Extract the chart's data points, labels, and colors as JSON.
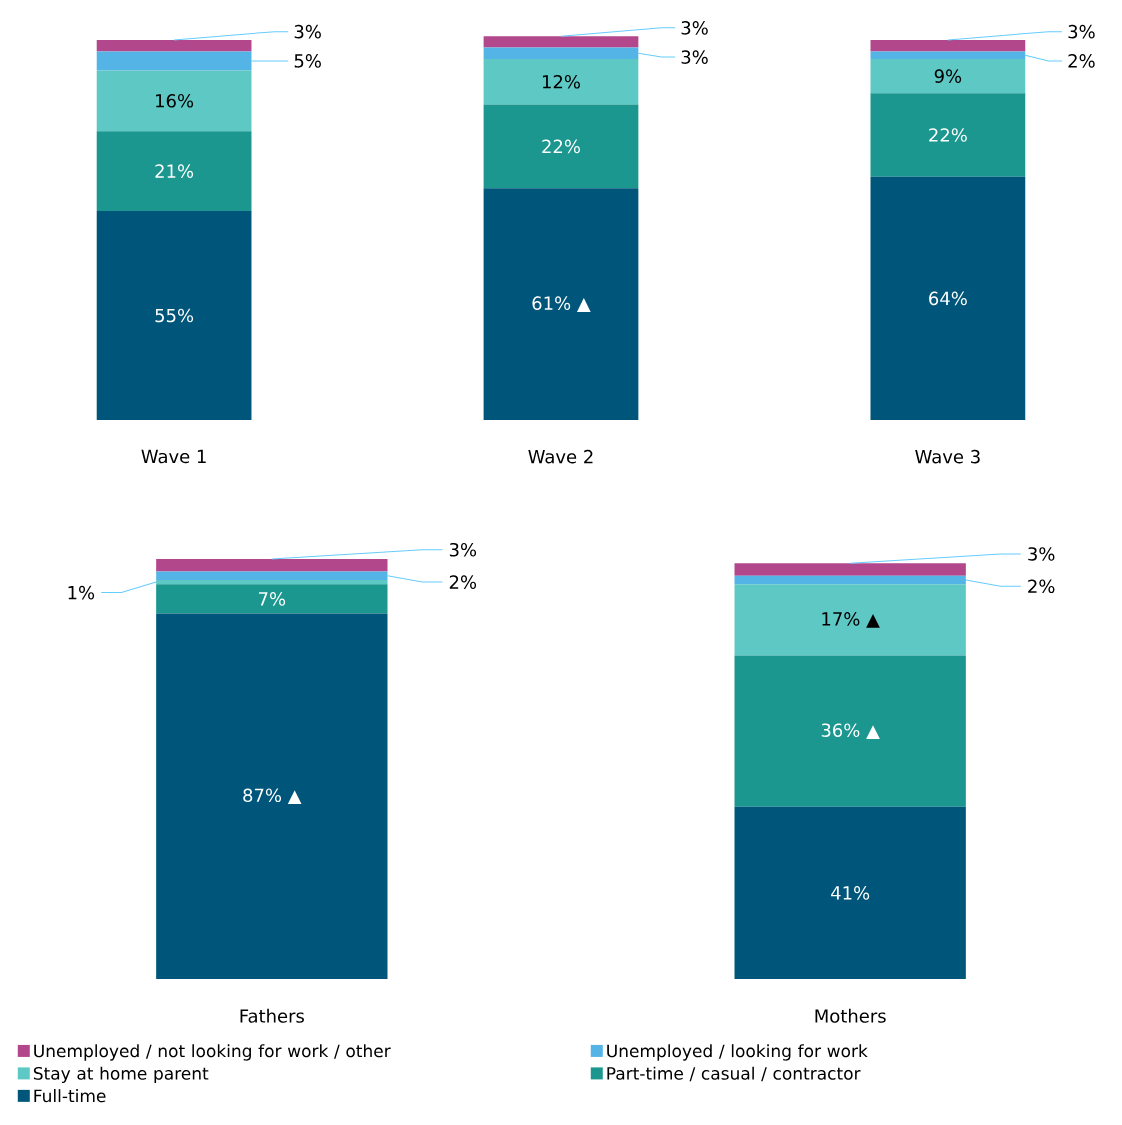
{
  "chart_data": [
    {
      "type": "bar",
      "stacked": true,
      "categories": [
        "Wave 1",
        "Wave 2",
        "Wave 3"
      ],
      "series": [
        {
          "color": "#00567a",
          "values": [
            55,
            61,
            64
          ],
          "value_labels": [
            "55%",
            "61% ▲",
            "64%"
          ]
        },
        {
          "color": "#1b978f",
          "values": [
            21,
            22,
            22
          ],
          "value_labels": [
            "21%",
            "22%",
            "22%"
          ]
        },
        {
          "color": "#5ec8c5",
          "values": [
            16,
            12,
            9
          ],
          "value_labels": [
            "16%",
            "12%",
            "9%"
          ]
        },
        {
          "color": "#55b4e6",
          "values": [
            5,
            3,
            2
          ],
          "value_labels": [
            "5%",
            "3%",
            "2%"
          ]
        },
        {
          "color": "#b3478c",
          "values": [
            3,
            3,
            3
          ],
          "value_labels": [
            "3%",
            "3%",
            "3%"
          ]
        }
      ]
    },
    {
      "type": "bar",
      "stacked": true,
      "categories": [
        "Fathers",
        "Mothers"
      ],
      "legend": "bottom",
      "series": [
        {
          "name": "Full-time",
          "color": "#00567a",
          "values": [
            87,
            41
          ],
          "value_labels": [
            "87% ▲",
            "41%"
          ]
        },
        {
          "name": "Part-time / casual / contractor",
          "color": "#1b978f",
          "values": [
            7,
            36
          ],
          "value_labels": [
            "7%",
            "36% ▲"
          ]
        },
        {
          "name": "Stay at home parent",
          "color": "#5ec8c5",
          "values": [
            1,
            17
          ],
          "value_labels": [
            "1%",
            "17% ▲"
          ]
        },
        {
          "name": "Unemployed / looking for work",
          "color": "#55b4e6",
          "values": [
            2,
            2
          ],
          "value_labels": [
            "2%",
            "2%"
          ]
        },
        {
          "name": "Unemployed / not looking for work / other",
          "color": "#b3478c",
          "values": [
            3,
            3
          ],
          "value_labels": [
            "3%",
            "3%"
          ]
        }
      ]
    }
  ]
}
